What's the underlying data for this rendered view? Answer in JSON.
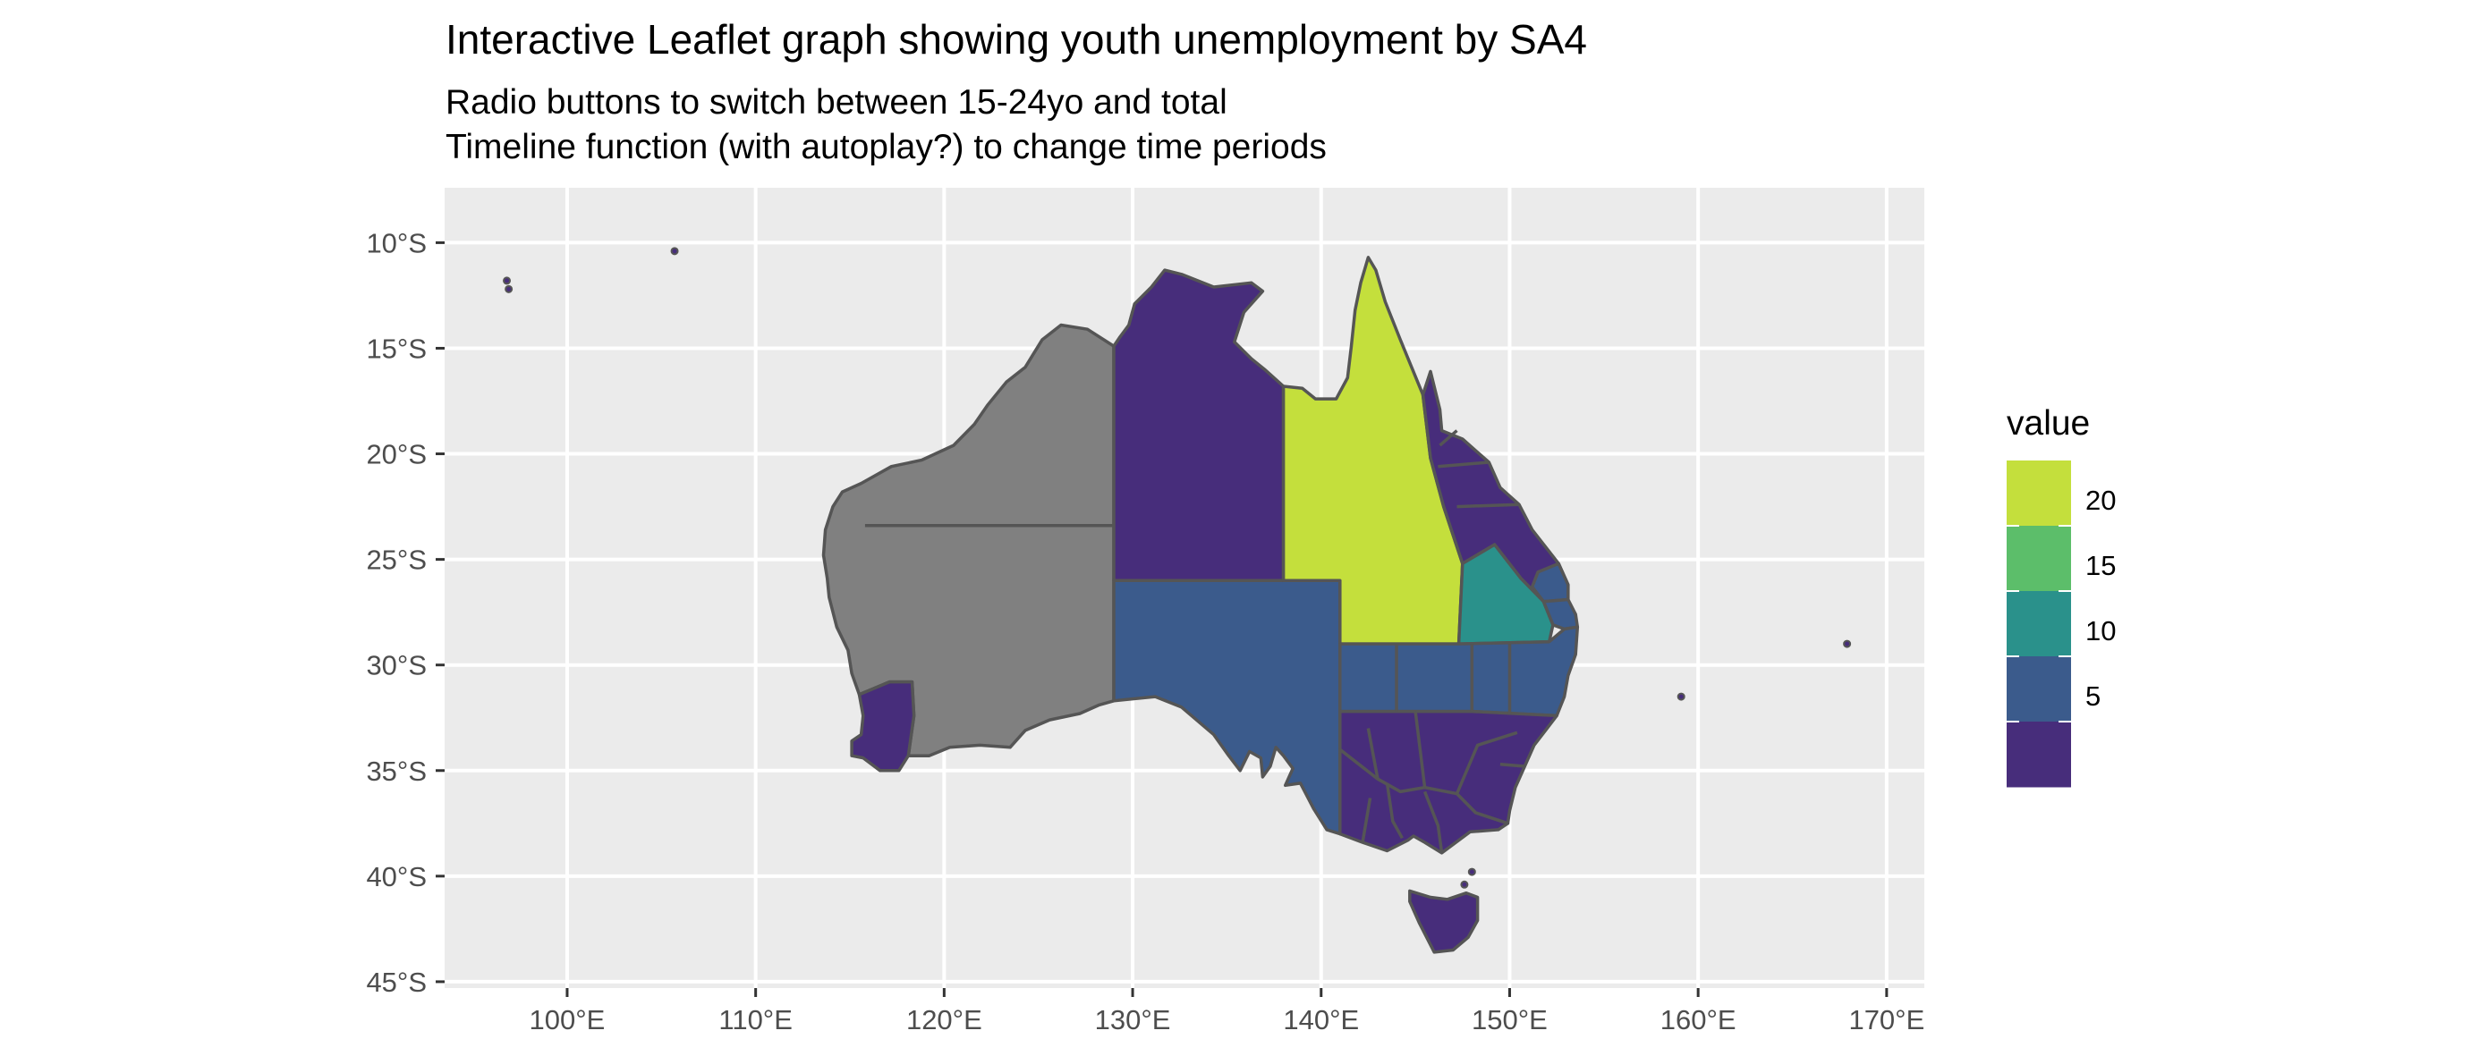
{
  "title": "Interactive Leaflet graph showing youth unemployment by SA4",
  "subtitle": {
    "line1": "Radio buttons to switch between 15-24yo and total",
    "line2": "Timeline function (with autoplay?) to change time periods"
  },
  "chart_data": {
    "type": "choropleth",
    "panel_color": "#ebebeb",
    "grid": true,
    "x_range_deg": [
      93.5,
      172
    ],
    "y_range_deg": [
      -45.3,
      -7.4
    ],
    "x_ticks": [
      {
        "value": 100,
        "label": "100°E"
      },
      {
        "value": 110,
        "label": "110°E"
      },
      {
        "value": 120,
        "label": "120°E"
      },
      {
        "value": 130,
        "label": "130°E"
      },
      {
        "value": 140,
        "label": "140°E"
      },
      {
        "value": 150,
        "label": "150°E"
      },
      {
        "value": 160,
        "label": "160°E"
      },
      {
        "value": 170,
        "label": "170°E"
      }
    ],
    "y_ticks": [
      {
        "value": -10,
        "label": "10°S"
      },
      {
        "value": -15,
        "label": "15°S"
      },
      {
        "value": -20,
        "label": "20°S"
      },
      {
        "value": -25,
        "label": "25°S"
      },
      {
        "value": -30,
        "label": "30°S"
      },
      {
        "value": -35,
        "label": "35°S"
      },
      {
        "value": -40,
        "label": "40°S"
      },
      {
        "value": -45,
        "label": "45°S"
      }
    ],
    "legend": {
      "title": "value",
      "placement": "right",
      "bins": [
        {
          "color": "#440154"
        },
        {
          "color": "#3b528b"
        },
        {
          "color": "#21908c"
        },
        {
          "color": "#5dc863"
        },
        {
          "color": "#c2df23"
        }
      ],
      "labels": [
        {
          "value": 5,
          "label": "5"
        },
        {
          "value": 10,
          "label": "10"
        },
        {
          "value": 15,
          "label": "15"
        },
        {
          "value": 20,
          "label": "20"
        }
      ]
    },
    "colors": {
      "no_data": "#808080",
      "border": "#555555",
      "bin_1": "#472d7b",
      "bin_2": "#3b5b8c",
      "bin_3": "#2a918b",
      "bin_4": "#5cbe6a",
      "bin_5": "#c4df3c"
    }
  }
}
